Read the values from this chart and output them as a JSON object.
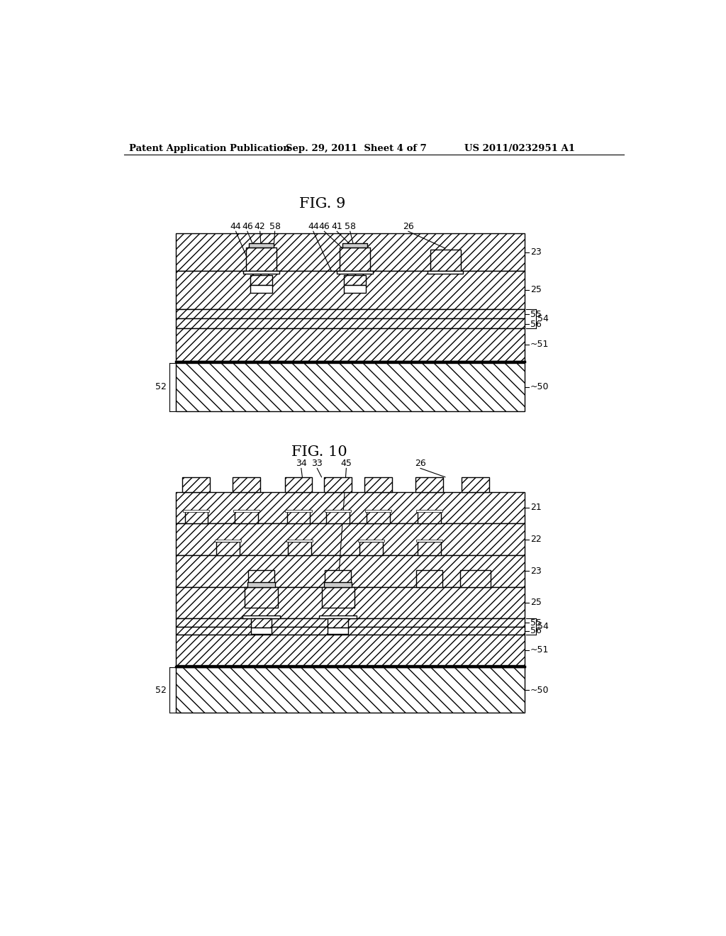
{
  "header_left": "Patent Application Publication",
  "header_center": "Sep. 29, 2011  Sheet 4 of 7",
  "header_right": "US 2011/0232951 A1",
  "fig9_title": "FIG. 9",
  "fig10_title": "FIG. 10",
  "background_color": "#ffffff",
  "line_color": "#000000"
}
